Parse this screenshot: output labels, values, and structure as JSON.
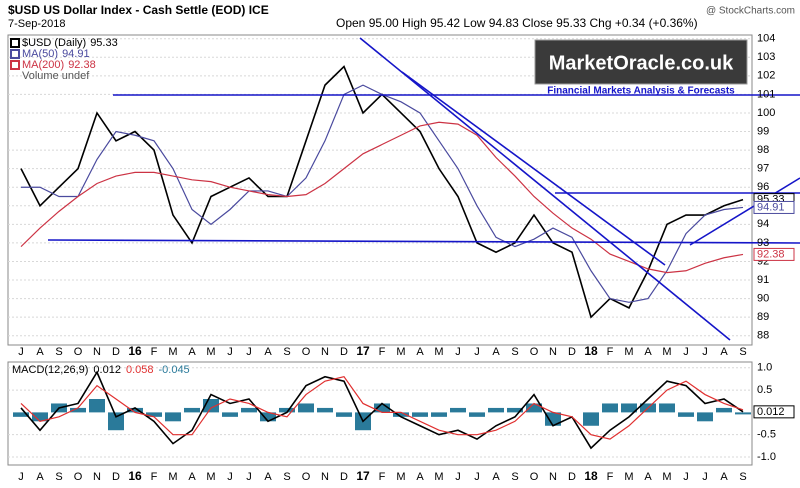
{
  "header": {
    "symbol_title": "$USD US Dollar Index - Cash Settle (EOD) ICE",
    "date": "7-Sep-2018",
    "quote": "Open 95.00  High 95.42  Low 94.83  Close 95.33  Chg +0.34 (+0.36%)",
    "source": "@ StockCharts.com",
    "watermark": "MarketOracle.co.uk",
    "watermark_sub": "Financial Markets Analysis & Forecasts",
    "volume_note": "Volume undef"
  },
  "chart_data": [
    {
      "type": "line",
      "categories": [
        "J",
        "A",
        "S",
        "O",
        "N",
        "D",
        "16",
        "F",
        "M",
        "A",
        "M",
        "J",
        "J",
        "A",
        "S",
        "O",
        "N",
        "D",
        "17",
        "F",
        "M",
        "A",
        "M",
        "J",
        "J",
        "A",
        "S",
        "O",
        "N",
        "D",
        "18",
        "F",
        "M",
        "A",
        "M",
        "J",
        "J",
        "A",
        "S"
      ],
      "series": [
        {
          "name": "$USD (Daily)",
          "color": "#000000",
          "values": [
            97,
            95,
            96,
            97,
            100,
            98.5,
            99,
            98,
            94.5,
            93,
            95.5,
            96,
            96.5,
            95.5,
            95.5,
            98.5,
            101.5,
            102.5,
            100,
            101,
            100,
            99,
            97,
            95.5,
            93,
            92.5,
            93,
            94.5,
            93,
            92.5,
            89,
            90,
            89.5,
            91.5,
            94,
            94.5,
            94.5,
            95,
            95.33
          ]
        },
        {
          "name": "MA(50)",
          "color": "#4a4a9e",
          "values": [
            96,
            96,
            95.5,
            95.5,
            97.5,
            99,
            98.8,
            98.5,
            97,
            94.8,
            94,
            94.8,
            95.8,
            95.8,
            95.5,
            96.5,
            98.5,
            101,
            101.5,
            101,
            100.6,
            100,
            98.5,
            97,
            95,
            93.3,
            92.8,
            93.2,
            93.8,
            93.3,
            91.5,
            90,
            89.8,
            90,
            91.5,
            93.5,
            94.5,
            94.8,
            94.91
          ]
        },
        {
          "name": "MA(200)",
          "color": "#cc3344",
          "values": [
            92.8,
            93.8,
            94.7,
            95.5,
            96.2,
            96.6,
            96.8,
            96.8,
            96.6,
            96.4,
            96.3,
            96,
            95.8,
            95.6,
            95.5,
            95.6,
            96.2,
            97,
            97.8,
            98.3,
            98.8,
            99.3,
            99.5,
            99.4,
            98.8,
            97.6,
            96.6,
            95.5,
            94.6,
            93.8,
            93.2,
            92.4,
            92,
            91.6,
            91.4,
            91.5,
            91.9,
            92.2,
            92.38
          ]
        }
      ],
      "ylim": [
        87.5,
        104.2
      ],
      "yticks": [
        88,
        89,
        90,
        91,
        92,
        93,
        94,
        95,
        96,
        97,
        98,
        99,
        100,
        101,
        102,
        103,
        104
      ],
      "grid": true
    },
    {
      "type": "line",
      "title": "MACD(12,26,9)",
      "categories": [
        "J",
        "A",
        "S",
        "O",
        "N",
        "D",
        "16",
        "F",
        "M",
        "A",
        "M",
        "J",
        "J",
        "A",
        "S",
        "O",
        "N",
        "D",
        "17",
        "F",
        "M",
        "A",
        "M",
        "J",
        "J",
        "A",
        "S",
        "O",
        "N",
        "D",
        "18",
        "F",
        "M",
        "A",
        "M",
        "J",
        "J",
        "A",
        "S"
      ],
      "series": [
        {
          "name": "MACD",
          "color": "#000000",
          "values": [
            0.1,
            -0.4,
            0.1,
            0.2,
            0.9,
            -0.1,
            0.1,
            -0.2,
            -0.7,
            -0.4,
            0.4,
            0.2,
            0.3,
            -0.2,
            0,
            0.6,
            0.8,
            0.7,
            -0.2,
            0.2,
            -0.1,
            -0.3,
            -0.5,
            -0.4,
            -0.6,
            -0.3,
            -0.1,
            0.4,
            -0.3,
            -0.1,
            -0.8,
            -0.4,
            -0.1,
            0.3,
            0.7,
            0.6,
            0.2,
            0.3,
            0.012
          ]
        },
        {
          "name": "Signal",
          "color": "#e03030",
          "values": [
            0.2,
            -0.2,
            -0.1,
            0.1,
            0.6,
            0.3,
            0,
            -0.1,
            -0.5,
            -0.5,
            0.1,
            0.3,
            0.2,
            0,
            -0.1,
            0.4,
            0.7,
            0.8,
            0.2,
            0,
            0,
            -0.2,
            -0.4,
            -0.5,
            -0.5,
            -0.4,
            -0.2,
            0.2,
            0,
            -0.1,
            -0.5,
            -0.6,
            -0.3,
            0.1,
            0.5,
            0.7,
            0.4,
            0.2,
            0.058
          ]
        },
        {
          "name": "Histogram",
          "type": "bar",
          "color": "#2a7a9a",
          "values": [
            -0.1,
            -0.2,
            0.2,
            0.1,
            0.3,
            -0.4,
            0.1,
            -0.1,
            -0.2,
            0.1,
            0.3,
            -0.1,
            0.1,
            -0.2,
            0.1,
            0.2,
            0.1,
            -0.1,
            -0.4,
            0.2,
            -0.1,
            -0.1,
            -0.1,
            0.1,
            -0.1,
            0.1,
            0.1,
            0.2,
            -0.3,
            0,
            -0.3,
            0.2,
            0.2,
            0.2,
            0.2,
            -0.1,
            -0.2,
            0.1,
            -0.045
          ]
        }
      ],
      "ylim": [
        -1.18,
        1.13
      ],
      "yticks": [
        {
          "value": 1,
          "label": "1.0"
        },
        0.5,
        -0.5,
        {
          "value": -1,
          "label": "-1.0"
        }
      ],
      "grid": true
    }
  ]
}
